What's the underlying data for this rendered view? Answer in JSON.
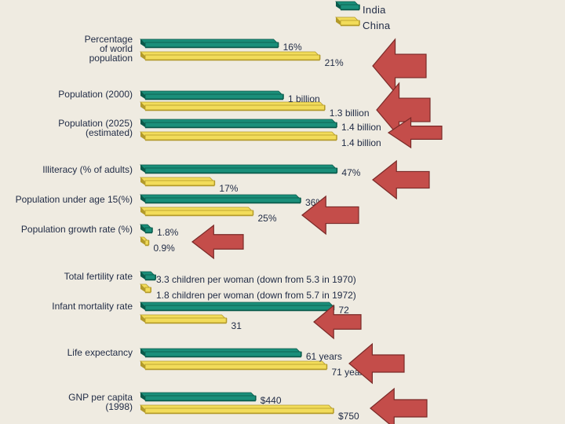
{
  "chart_data": {
    "type": "bar",
    "orientation": "horizontal",
    "legend": {
      "placement": "top-right",
      "entries": [
        {
          "name": "India",
          "color": "#1a8f7a"
        },
        {
          "name": "China",
          "color": "#f2dc5a"
        }
      ]
    },
    "categories": [
      {
        "label": [
          "Percentage",
          "of world",
          "population"
        ],
        "india": {
          "value": 16,
          "text": "16%"
        },
        "china": {
          "value": 21,
          "text": "21%"
        },
        "arrow": true
      },
      {
        "label": [
          "Population (2000)"
        ],
        "india": {
          "value": 1.0,
          "text": "1 billion"
        },
        "china": {
          "value": 1.3,
          "text": "1.3 billion"
        },
        "arrow": true
      },
      {
        "label": [
          "Population (2025)",
          "(estimated)"
        ],
        "india": {
          "value": 1.4,
          "text": "1.4 billion"
        },
        "china": {
          "value": 1.4,
          "text": "1.4 billion"
        },
        "arrow": true
      },
      {
        "label": [
          "Illiteracy (% of adults)"
        ],
        "india": {
          "value": 47,
          "text": "47%"
        },
        "china": {
          "value": 17,
          "text": "17%"
        },
        "arrow": true
      },
      {
        "label": [
          "Population under age 15(%)"
        ],
        "india": {
          "value": 36,
          "text": "36%"
        },
        "china": {
          "value": 25,
          "text": "25%"
        },
        "arrow": true
      },
      {
        "label": [
          "Population growth rate (%)"
        ],
        "india": {
          "value": 1.8,
          "text": "1.8%"
        },
        "china": {
          "value": 0.9,
          "text": "0.9%"
        },
        "arrow": true
      },
      {
        "label": [
          "Total fertility rate"
        ],
        "india": {
          "value": 3.3,
          "text": "3.3 children per woman (down from 5.3 in 1970)"
        },
        "china": {
          "value": 1.8,
          "text": "1.8 children per woman (down from 5.7 in 1972)"
        },
        "arrow": false
      },
      {
        "label": [
          "Infant mortality rate"
        ],
        "india": {
          "value": 72,
          "text": "72"
        },
        "china": {
          "value": 31,
          "text": "31"
        },
        "arrow": true
      },
      {
        "label": [
          "Life expectancy"
        ],
        "india": {
          "value": 61,
          "text": "61 years"
        },
        "china": {
          "value": 71,
          "text": "71 years"
        },
        "arrow": true
      },
      {
        "label": [
          "GNP per capita",
          "(1998)"
        ],
        "india": {
          "value": 440,
          "text": "$440"
        },
        "china": {
          "value": 750,
          "text": "$750"
        },
        "arrow": true
      }
    ],
    "colors": {
      "india": "#1a8f7a",
      "india_shade": "#0b5a4b",
      "china": "#f2dc5a",
      "china_shade": "#b39a2a",
      "arrow": "#c44d4a",
      "arrow_outline": "#7a2a28",
      "text": "#1f2a44",
      "background": "#efebe1"
    }
  }
}
